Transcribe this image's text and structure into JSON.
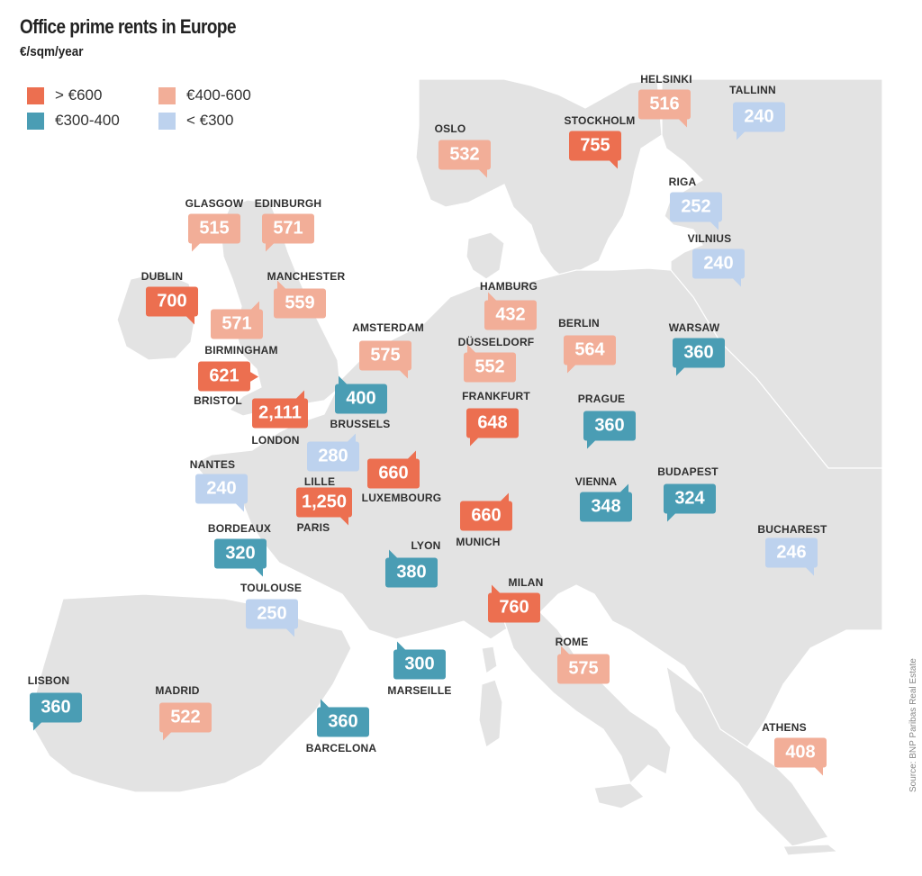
{
  "title": "Office prime rents in Europe",
  "subtitle": "€/sqm/year",
  "source": "Source: BNP Paribas Real Estate",
  "colors": {
    "high": "#EC6F50",
    "mid_high": "#F2AE98",
    "mid": "#4A9DB4",
    "low": "#BDD2EE",
    "land": "#E3E3E3",
    "sea": "#FFFFFF"
  },
  "legend": [
    {
      "label": "> €600",
      "color": "#EC6F50"
    },
    {
      "label": "€300-400",
      "color": "#4A9DB4"
    },
    {
      "label": "€400-600",
      "color": "#F2AE98"
    },
    {
      "label": "< €300",
      "color": "#BDD2EE"
    }
  ],
  "cities": [
    {
      "name": "HELSINKI",
      "value": "516",
      "cat": "mid_high"
    },
    {
      "name": "TALLINN",
      "value": "240",
      "cat": "low"
    },
    {
      "name": "OSLO",
      "value": "532",
      "cat": "mid_high"
    },
    {
      "name": "STOCKHOLM",
      "value": "755",
      "cat": "high"
    },
    {
      "name": "RIGA",
      "value": "252",
      "cat": "low"
    },
    {
      "name": "GLASGOW",
      "value": "515",
      "cat": "mid_high"
    },
    {
      "name": "EDINBURGH",
      "value": "571",
      "cat": "mid_high"
    },
    {
      "name": "VILNIUS",
      "value": "240",
      "cat": "low"
    },
    {
      "name": "DUBLIN",
      "value": "700",
      "cat": "high"
    },
    {
      "name": "MANCHESTER",
      "value": "559",
      "cat": "mid_high"
    },
    {
      "name": "HAMBURG",
      "value": "432",
      "cat": "mid_high"
    },
    {
      "name": "BIRMINGHAM",
      "value": "571",
      "cat": "mid_high"
    },
    {
      "name": "AMSTERDAM",
      "value": "575",
      "cat": "mid_high"
    },
    {
      "name": "BERLIN",
      "value": "564",
      "cat": "mid_high"
    },
    {
      "name": "WARSAW",
      "value": "360",
      "cat": "mid"
    },
    {
      "name": "DÜSSELDORF",
      "value": "552",
      "cat": "mid_high"
    },
    {
      "name": "BRISTOL",
      "value": "621",
      "cat": "high"
    },
    {
      "name": "LONDON",
      "value": "2,111",
      "cat": "high"
    },
    {
      "name": "BRUSSELS",
      "value": "400",
      "cat": "mid"
    },
    {
      "name": "FRANKFURT",
      "value": "648",
      "cat": "high"
    },
    {
      "name": "PRAGUE",
      "value": "360",
      "cat": "mid"
    },
    {
      "name": "LILLE",
      "value": "280",
      "cat": "low"
    },
    {
      "name": "NANTES",
      "value": "240",
      "cat": "low"
    },
    {
      "name": "LUXEMBOURG",
      "value": "660",
      "cat": "high"
    },
    {
      "name": "PARIS",
      "value": "1,250",
      "cat": "high"
    },
    {
      "name": "VIENNA",
      "value": "348",
      "cat": "mid"
    },
    {
      "name": "BUDAPEST",
      "value": "324",
      "cat": "mid"
    },
    {
      "name": "MUNICH",
      "value": "660",
      "cat": "high"
    },
    {
      "name": "BORDEAUX",
      "value": "320",
      "cat": "mid"
    },
    {
      "name": "LYON",
      "value": "380",
      "cat": "mid"
    },
    {
      "name": "BUCHAREST",
      "value": "246",
      "cat": "low"
    },
    {
      "name": "TOULOUSE",
      "value": "250",
      "cat": "low"
    },
    {
      "name": "MILAN",
      "value": "760",
      "cat": "high"
    },
    {
      "name": "ROME",
      "value": "575",
      "cat": "mid_high"
    },
    {
      "name": "MARSEILLE",
      "value": "300",
      "cat": "mid"
    },
    {
      "name": "LISBON",
      "value": "360",
      "cat": "mid"
    },
    {
      "name": "MADRID",
      "value": "522",
      "cat": "mid_high"
    },
    {
      "name": "BARCELONA",
      "value": "360",
      "cat": "mid"
    },
    {
      "name": "ATHENS",
      "value": "408",
      "cat": "mid_high"
    }
  ]
}
